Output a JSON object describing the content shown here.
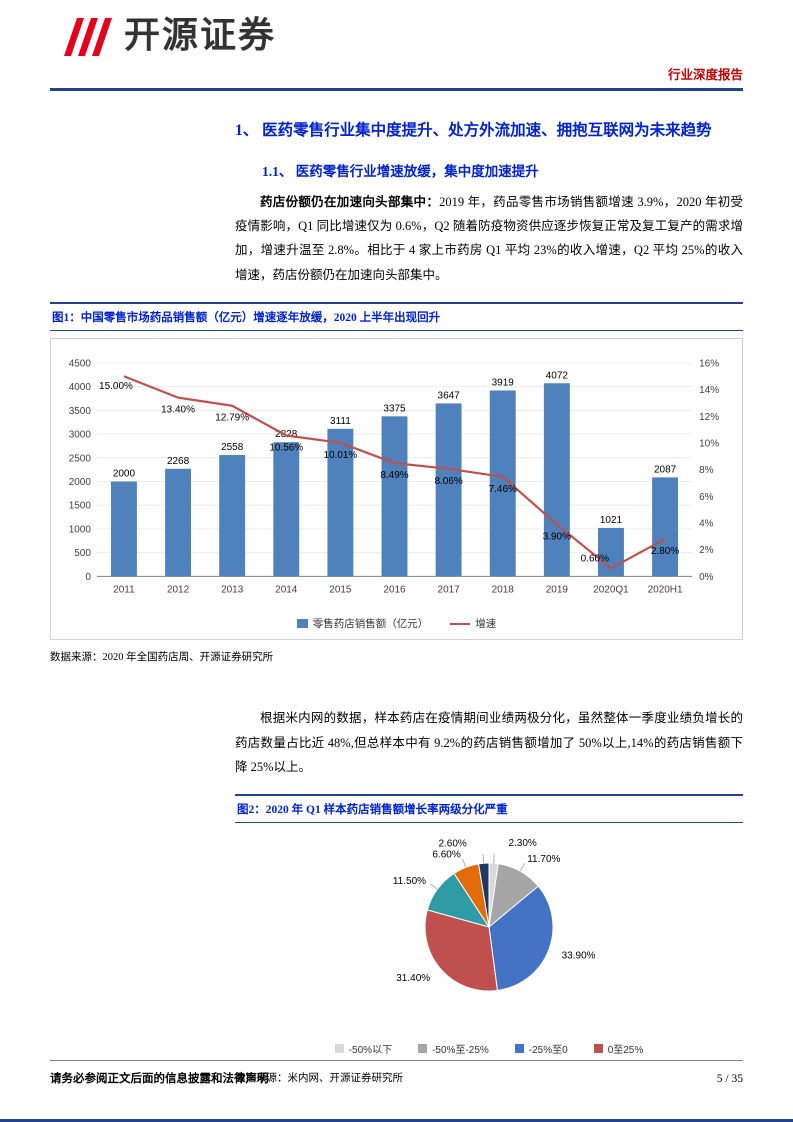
{
  "header": {
    "brand": "开源证券",
    "report_type": "行业深度报告"
  },
  "section": {
    "heading1": "1、 医药零售行业集中度提升、处方外流加速、拥抱互联网为未来趋势",
    "heading2": "1.1、 医药零售行业增速放缓，集中度加速提升",
    "para1_lead": "药店份额仍在加速向头部集中：",
    "para1_rest": "2019 年，药品零售市场销售额增速 3.9%，2020 年初受疫情影响，Q1 同比增速仅为 0.6%，Q2 随着防疫物资供应逐步恢复正常及复工复产的需求增加，增速升温至 2.8%。相比于 4 家上市药房 Q1 平均 23%的收入增速，Q2 平均 25%的收入增速，药店份额仍在加速向头部集中。",
    "para2": "根据米内网的数据，样本药店在疫情期间业绩两极分化，虽然整体一季度业绩负增长的药店数量占比近 48%,但总样本中有 9.2%的药店销售额增加了 50%以上,14%的药店销售额下降 25%以上。"
  },
  "figure1": {
    "title": "图1：中国零售市场药品销售额（亿元）增速逐年放缓，2020 上半年出现回升",
    "source": "数据来源：2020 年全国药店周、开源证券研究所"
  },
  "figure2": {
    "title": "图2：2020 年 Q1 样本药店销售额增长率两级分化严重",
    "source": "数据来源：米内网、开源证券研究所"
  },
  "chart_data": [
    {
      "type": "bar",
      "title": "中国零售市场药品销售额（亿元）增速逐年放缓，2020上半年出现回升",
      "categories": [
        "2011",
        "2012",
        "2013",
        "2014",
        "2015",
        "2016",
        "2017",
        "2018",
        "2019",
        "2020Q1",
        "2020H1"
      ],
      "series": [
        {
          "name": "零售药店销售额（亿元）",
          "kind": "bar",
          "color": "#4F81BD",
          "values": [
            2000,
            2268,
            2558,
            2828,
            3111,
            3375,
            3647,
            3919,
            4072,
            1021,
            2087
          ]
        },
        {
          "name": "增速",
          "kind": "line",
          "color": "#C0504D",
          "values": [
            15.0,
            13.4,
            12.79,
            10.56,
            10.01,
            8.49,
            8.06,
            7.46,
            3.9,
            0.6,
            2.8
          ],
          "labels": [
            "15.00%",
            "13.40%",
            "12.79%",
            "10.56%",
            "10.01%",
            "8.49%",
            "8.06%",
            "7.46%",
            "3.90%",
            "0.60%",
            "2.80%"
          ]
        }
      ],
      "left_axis": {
        "min": 0,
        "max": 4500,
        "step": 500
      },
      "right_axis": {
        "min": 0,
        "max": 16,
        "step": 2,
        "suffix": "%"
      },
      "legend_position": "bottom",
      "legend": [
        {
          "label": "零售药店销售额（亿元）",
          "color": "#4F81BD",
          "marker": "square"
        },
        {
          "label": "增速",
          "color": "#C0504D",
          "marker": "line"
        }
      ]
    },
    {
      "type": "pie",
      "title": "2020年Q1样本药店销售额增长率两级分化严重",
      "slices": [
        {
          "display": "2.30%",
          "value": 2.3,
          "color": "#D9D9D9"
        },
        {
          "display": "11.70%",
          "value": 11.7,
          "color": "#A6A6A6"
        },
        {
          "display": "33.90%",
          "value": 33.9,
          "color": "#4472C4"
        },
        {
          "display": "31.40%",
          "value": 31.4,
          "color": "#C0504D"
        },
        {
          "display": "11.50%",
          "value": 11.5,
          "color": "#2E9BA5"
        },
        {
          "display": "6.60%",
          "value": 6.6,
          "color": "#E36C0A"
        },
        {
          "display": "2.60%",
          "value": 2.6,
          "color": "#1F3864"
        }
      ],
      "legend": [
        {
          "label": "-50%以下",
          "color": "#D9D9D9"
        },
        {
          "label": "-50%至-25%",
          "color": "#A6A6A6"
        },
        {
          "label": "-25%至0",
          "color": "#4472C4"
        },
        {
          "label": "0至25%",
          "color": "#C0504D"
        }
      ]
    }
  ],
  "footer": {
    "disclaimer": "请务必参阅正文后面的信息披露和法律声明",
    "page": "5 / 35"
  }
}
